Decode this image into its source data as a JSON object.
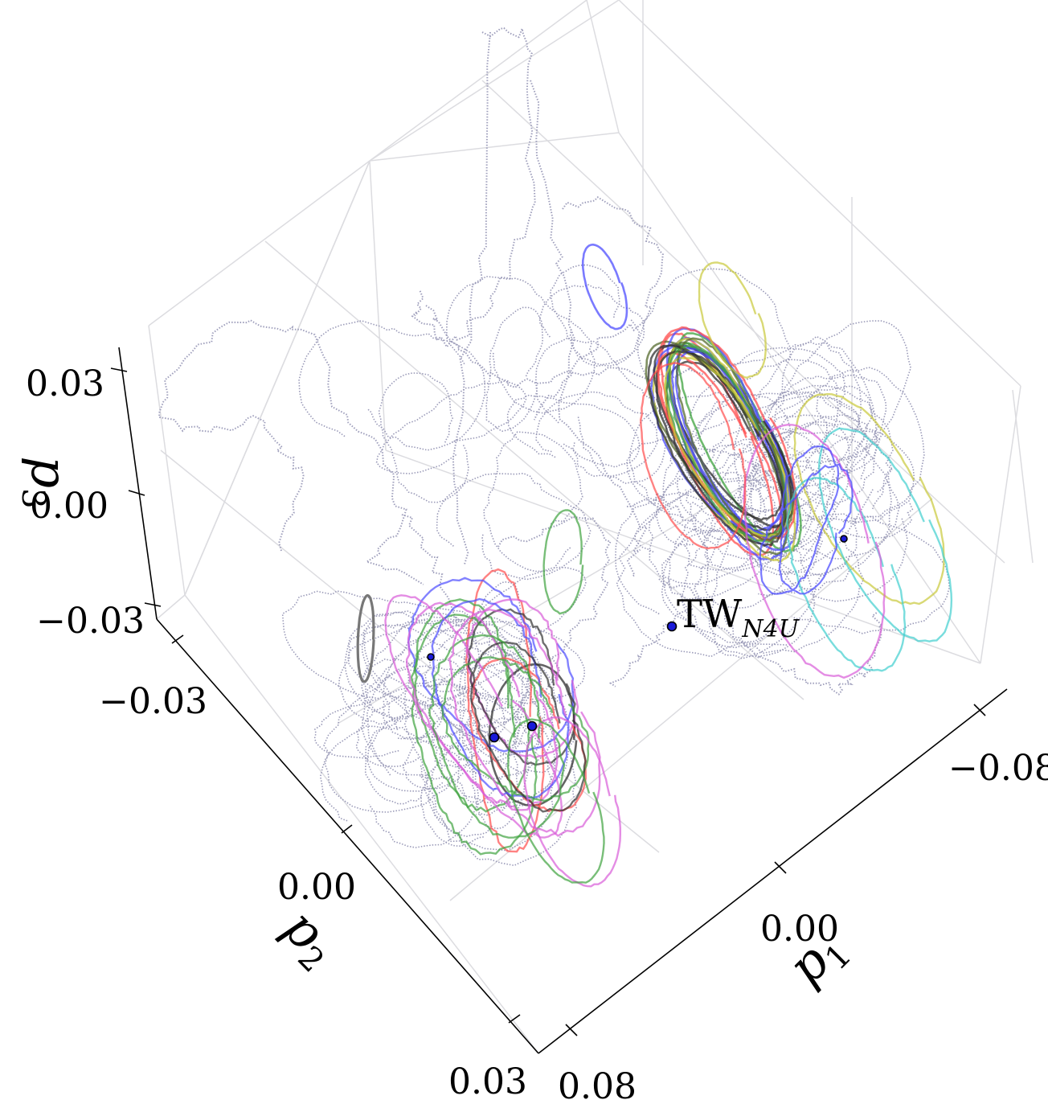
{
  "chart_data": {
    "type": "scatter3d",
    "title": "",
    "axes": {
      "p1": {
        "label": "p",
        "subscript": "1",
        "ticks": [
          "−0.08",
          "0.00",
          "0.08"
        ],
        "range": [
          -0.08,
          0.08
        ]
      },
      "p2": {
        "label": "p",
        "subscript": "2",
        "ticks": [
          "−0.03",
          "0.00",
          "0.03"
        ],
        "range": [
          -0.03,
          0.03
        ]
      },
      "p3": {
        "label": "p",
        "subscript": "3",
        "ticks": [
          "−0.03",
          "0.00",
          "0.03"
        ],
        "range": [
          -0.03,
          0.03
        ]
      }
    },
    "grid": true,
    "annotation": {
      "text": "TW",
      "subscript": "N4U"
    },
    "series": [
      {
        "color": "#9a9ab8",
        "style": "dotted",
        "description_role": "background turbulent trajectory"
      },
      {
        "color": "#ff4d4d"
      },
      {
        "color": "#4d4dff"
      },
      {
        "color": "#3fa33f"
      },
      {
        "color": "#d95cd9"
      },
      {
        "color": "#40cfcf"
      },
      {
        "color": "#c9c93a"
      },
      {
        "color": "#303030"
      },
      {
        "color": "#556b2f"
      }
    ],
    "points": [
      {
        "role": "labelled",
        "color": "#1a1ad9"
      },
      {
        "role": "point",
        "color": "#1a1ad9"
      },
      {
        "role": "point",
        "color": "#1a1ad9"
      },
      {
        "role": "point",
        "color": "#1a1ad9"
      },
      {
        "role": "point",
        "color": "#1a1ad9"
      }
    ]
  }
}
